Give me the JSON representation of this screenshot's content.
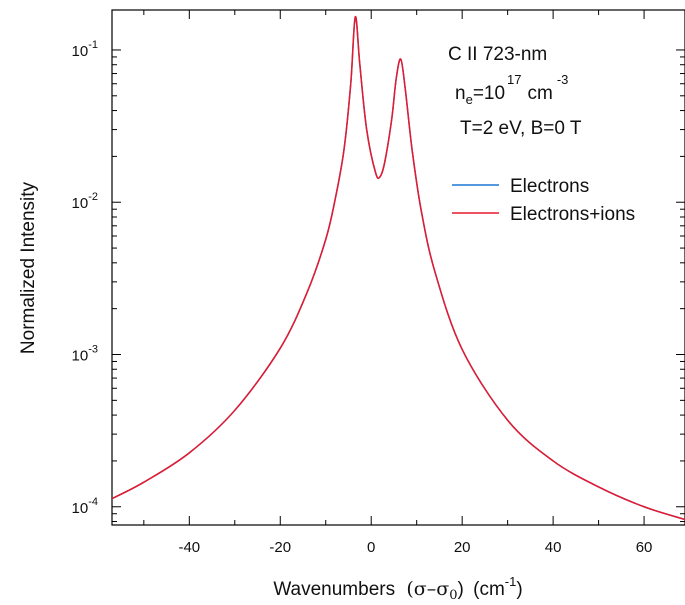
{
  "chart_data": {
    "type": "line",
    "xlabel_text": "Wavenumbers",
    "xlabel_sigma": "(σ–σ",
    "xlabel_sub0": "0",
    "xlabel_close": ")",
    "xlabel_unit": "(cm",
    "xlabel_unit_exp": "-1",
    "xlabel_unit_close": ")",
    "ylabel": "Normalized Intensity",
    "y_scale": "log",
    "xlim": [
      -57,
      69
    ],
    "ylim": [
      7.59e-05,
      0.183
    ],
    "x_ticks": [
      {
        "value": -40,
        "label": "-40"
      },
      {
        "value": -20,
        "label": "-20"
      },
      {
        "value": 0,
        "label": "0"
      },
      {
        "value": 20,
        "label": "20"
      },
      {
        "value": 40,
        "label": "40"
      },
      {
        "value": 60,
        "label": "60"
      }
    ],
    "y_ticks": [
      {
        "value": 0.1,
        "base": "10",
        "exp": "-1"
      },
      {
        "value": 0.01,
        "base": "10",
        "exp": "-2"
      },
      {
        "value": 0.001,
        "base": "10",
        "exp": "-3"
      },
      {
        "value": 0.0001,
        "base": "10",
        "exp": "-4"
      }
    ],
    "grid": false,
    "legend_position": "top-right",
    "annotation": {
      "line1": "C II 723-nm",
      "ne_base": "n",
      "ne_sub": "e",
      "ne_eq": "=10",
      "ne_exp": "17",
      "ne_unit": "cm",
      "ne_unit_exp": "-3",
      "line3": "T=2 eV, B=0 T"
    },
    "series": [
      {
        "name": "Electrons",
        "color": "#1f77d4",
        "x": [
          -57,
          -50,
          -40,
          -30,
          -20,
          -14,
          -10,
          -8,
          -6,
          -4.5,
          -3.5,
          -2.5,
          -1,
          1,
          2,
          3,
          4.5,
          5.5,
          6.5,
          7.5,
          9,
          11,
          14,
          20,
          30,
          40,
          50,
          60,
          69
        ],
        "y": [
          0.000113,
          0.000145,
          0.000226,
          0.00043,
          0.0011,
          0.0026,
          0.0057,
          0.0102,
          0.022,
          0.06,
          0.165,
          0.08,
          0.03,
          0.0155,
          0.0148,
          0.0185,
          0.035,
          0.065,
          0.087,
          0.055,
          0.022,
          0.0088,
          0.0035,
          0.00108,
          0.00037,
          0.0002,
          0.000135,
          0.0001,
          8.25e-05
        ]
      },
      {
        "name": "Electrons+ions",
        "color": "#e8192c",
        "x": [
          -57,
          -50,
          -40,
          -30,
          -20,
          -14,
          -10,
          -8,
          -6,
          -4.5,
          -3.5,
          -2.5,
          -1,
          1,
          2,
          3,
          4.5,
          5.5,
          6.5,
          7.5,
          9,
          11,
          14,
          20,
          30,
          40,
          50,
          60,
          69
        ],
        "y": [
          0.000113,
          0.000145,
          0.000226,
          0.00043,
          0.0011,
          0.0026,
          0.0057,
          0.0102,
          0.022,
          0.06,
          0.165,
          0.08,
          0.03,
          0.0155,
          0.0148,
          0.0185,
          0.035,
          0.065,
          0.087,
          0.055,
          0.022,
          0.0088,
          0.0035,
          0.00108,
          0.00037,
          0.0002,
          0.000135,
          0.0001,
          8.25e-05
        ]
      }
    ]
  }
}
